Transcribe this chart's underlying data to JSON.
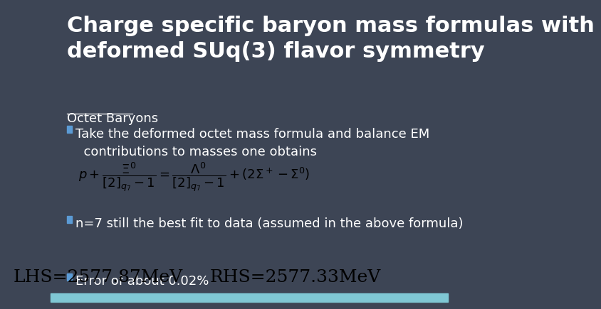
{
  "bg_color": "#3d4555",
  "title_text": "Charge specific baryon mass formulas with\ndeformed SUq(3) flavor symmetry",
  "title_color": "#ffffff",
  "title_fontsize": 22,
  "section_label": "Octet Baryons",
  "section_color": "#ffffff",
  "section_fontsize": 13,
  "bullet_color": "#5b9bd5",
  "bullet1_text": "Take the deformed octet mass formula and balance EM\n  contributions to masses one obtains",
  "bullet2_text": "n=7 still the best fit to data (assumed in the above formula)",
  "bullet3_text": "Error of about 0.02%",
  "body_color": "#ffffff",
  "body_fontsize": 13,
  "formula_text_color": "#000000",
  "lhs_text": "LHS=2577.87MeV",
  "rhs_text": "RHS=2577.33MeV",
  "lhs_rhs_fontsize": 18,
  "bottom_bar_color": "#7fc7d4",
  "bottom_bar_height": 0.03
}
